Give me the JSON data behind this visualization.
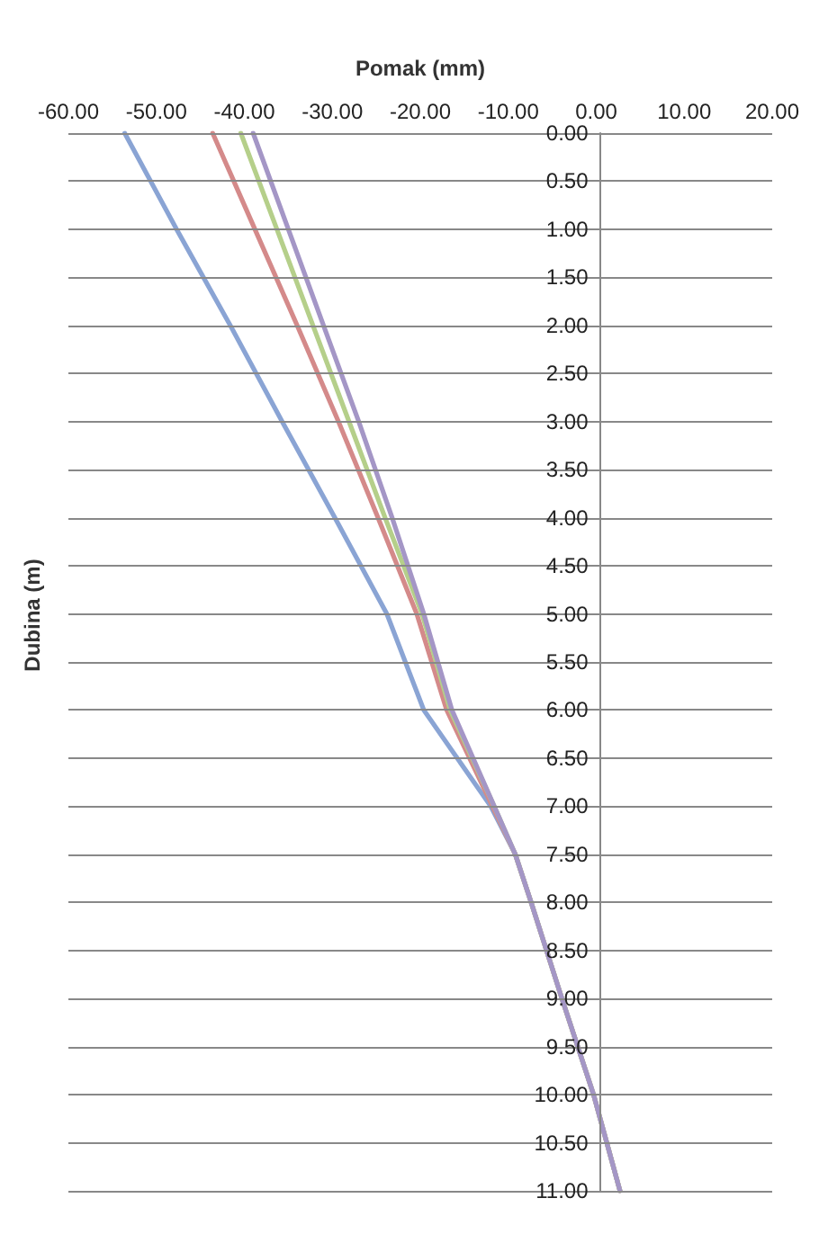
{
  "chart_data": {
    "type": "line",
    "xlabel": "Pomak (mm)",
    "ylabel": "Dubina (m)",
    "xlim": [
      -60,
      20
    ],
    "xticks": [
      {
        "value": -60,
        "label": "-60.00"
      },
      {
        "value": -50,
        "label": "-50.00"
      },
      {
        "value": -40,
        "label": "-40.00"
      },
      {
        "value": -30,
        "label": "-30.00"
      },
      {
        "value": -20,
        "label": "-20.00"
      },
      {
        "value": -10,
        "label": "-10.00"
      },
      {
        "value": 0,
        "label": "0.00"
      },
      {
        "value": 10,
        "label": "10.00"
      },
      {
        "value": 20,
        "label": "20.00"
      }
    ],
    "ylim": [
      11,
      0
    ],
    "yticks": [
      {
        "value": 0,
        "label": "0.00"
      },
      {
        "value": 0.5,
        "label": "0.50"
      },
      {
        "value": 1,
        "label": "1.00"
      },
      {
        "value": 1.5,
        "label": "1.50"
      },
      {
        "value": 2,
        "label": "2.00"
      },
      {
        "value": 2.5,
        "label": "2.50"
      },
      {
        "value": 3,
        "label": "3.00"
      },
      {
        "value": 3.5,
        "label": "3.50"
      },
      {
        "value": 4,
        "label": "4.00"
      },
      {
        "value": 4.5,
        "label": "4.50"
      },
      {
        "value": 5,
        "label": "5.00"
      },
      {
        "value": 5.5,
        "label": "5.50"
      },
      {
        "value": 6,
        "label": "6.00"
      },
      {
        "value": 6.5,
        "label": "6.50"
      },
      {
        "value": 7,
        "label": "7.00"
      },
      {
        "value": 7.5,
        "label": "7.50"
      },
      {
        "value": 8,
        "label": "8.00"
      },
      {
        "value": 8.5,
        "label": "8.50"
      },
      {
        "value": 9,
        "label": "9.00"
      },
      {
        "value": 9.5,
        "label": "9.50"
      },
      {
        "value": 10,
        "label": "10.00"
      },
      {
        "value": 10.5,
        "label": "10.50"
      },
      {
        "value": 11,
        "label": "11.00"
      }
    ],
    "grid": "y",
    "marker": "none",
    "line_style": "solid",
    "series": [
      {
        "color": "#8aa4d4",
        "x": [
          -53.6,
          -47.7,
          -41.6,
          -35.7,
          -29.7,
          -23.8,
          -19.6,
          -12.0,
          -9.2,
          -7.4,
          -3.9,
          -0.3,
          2.7
        ],
        "values": [
          0,
          1,
          2,
          3,
          4,
          5,
          6,
          7,
          7.5,
          8,
          9,
          10,
          11
        ]
      },
      {
        "color": "#d48a8a",
        "x": [
          -43.6,
          -38.8,
          -34.0,
          -29.3,
          -24.8,
          -20.4,
          -17.0,
          -11.8,
          -9.2,
          -7.4,
          -3.9,
          -0.3,
          2.7
        ],
        "values": [
          0,
          1,
          2,
          3,
          4,
          5,
          6,
          7,
          7.5,
          8,
          9,
          10,
          11
        ]
      },
      {
        "color": "#b5cf8a",
        "x": [
          -40.4,
          -36.3,
          -32.2,
          -28.1,
          -24.0,
          -19.8,
          -16.6,
          -11.6,
          -9.2,
          -7.4,
          -3.9,
          -0.3,
          2.7
        ],
        "values": [
          0,
          1,
          2,
          3,
          4,
          5,
          6,
          7,
          7.5,
          8,
          9,
          10,
          11
        ]
      },
      {
        "color": "#a496c6",
        "x": [
          -39.0,
          -35.0,
          -31.0,
          -27.0,
          -23.2,
          -19.6,
          -16.4,
          -11.6,
          -9.2,
          -7.4,
          -3.9,
          -0.3,
          2.7
        ],
        "values": [
          0,
          1,
          2,
          3,
          4,
          5,
          6,
          7,
          7.5,
          8,
          9,
          10,
          11
        ]
      }
    ]
  }
}
